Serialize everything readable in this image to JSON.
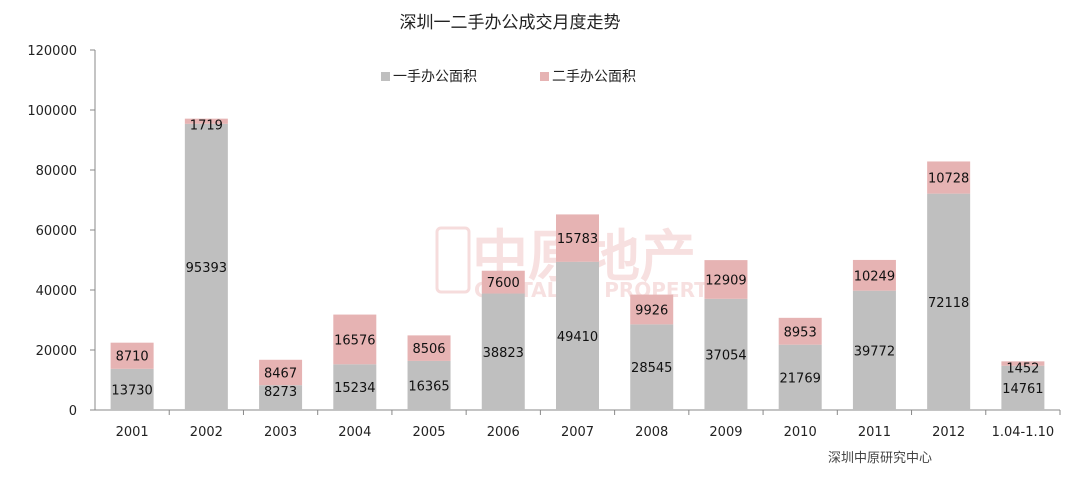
{
  "chart_data": {
    "type": "bar",
    "stacked": true,
    "title": "深圳一二手办公成交月度走势",
    "categories": [
      "2001",
      "2002",
      "2003",
      "2004",
      "2005",
      "2006",
      "2007",
      "2008",
      "2009",
      "2010",
      "2011",
      "2012",
      "1.04-1.10"
    ],
    "series": [
      {
        "name": "一手办公面积",
        "color": "#bfbfbf",
        "values": [
          13730,
          95393,
          8273,
          15234,
          16365,
          38823,
          49410,
          28545,
          37054,
          21769,
          39772,
          72118,
          14761
        ]
      },
      {
        "name": "二手办公面积",
        "color": "#e6b3b3",
        "values": [
          8710,
          1719,
          8467,
          16576,
          8506,
          7600,
          15783,
          9926,
          12909,
          8953,
          10249,
          10728,
          1452
        ]
      }
    ],
    "ylim": [
      0,
      120000
    ],
    "yticks": [
      0,
      20000,
      40000,
      60000,
      80000,
      100000,
      120000
    ],
    "legend_position": "top-center",
    "grid": false
  },
  "source_note": "深圳中原研究中心",
  "watermark": {
    "cn": "中原地产",
    "en": "CENTALINE PROPERTY",
    "seal": "中原"
  }
}
